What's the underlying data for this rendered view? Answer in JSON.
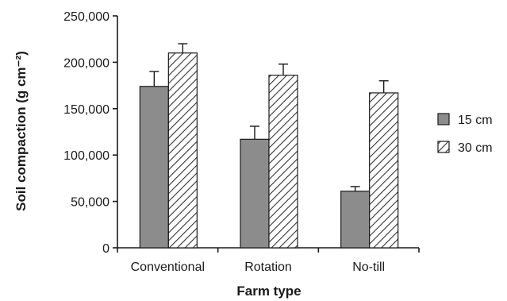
{
  "chart_data": {
    "type": "bar",
    "title": "",
    "xlabel": "Farm type",
    "ylabel": "Soil compaction (g cm⁻²)",
    "ylim": [
      0,
      250000
    ],
    "yticks": [
      0,
      50000,
      100000,
      150000,
      200000,
      250000
    ],
    "ytick_labels": [
      "0",
      "50,000",
      "100,000",
      "150,000",
      "200,000",
      "250,000"
    ],
    "categories": [
      "Conventional",
      "Rotation",
      "No-till"
    ],
    "series": [
      {
        "name": "15 cm",
        "values": [
          174000,
          117000,
          61000
        ],
        "errors": [
          16000,
          14000,
          5000
        ],
        "fill": "solid",
        "color": "#8c8c8c"
      },
      {
        "name": "30 cm",
        "values": [
          210000,
          186000,
          167000
        ],
        "errors": [
          10000,
          12000,
          13000
        ],
        "fill": "hatched",
        "color": "#ffffff"
      }
    ],
    "legend_position": "right",
    "grid": false
  }
}
